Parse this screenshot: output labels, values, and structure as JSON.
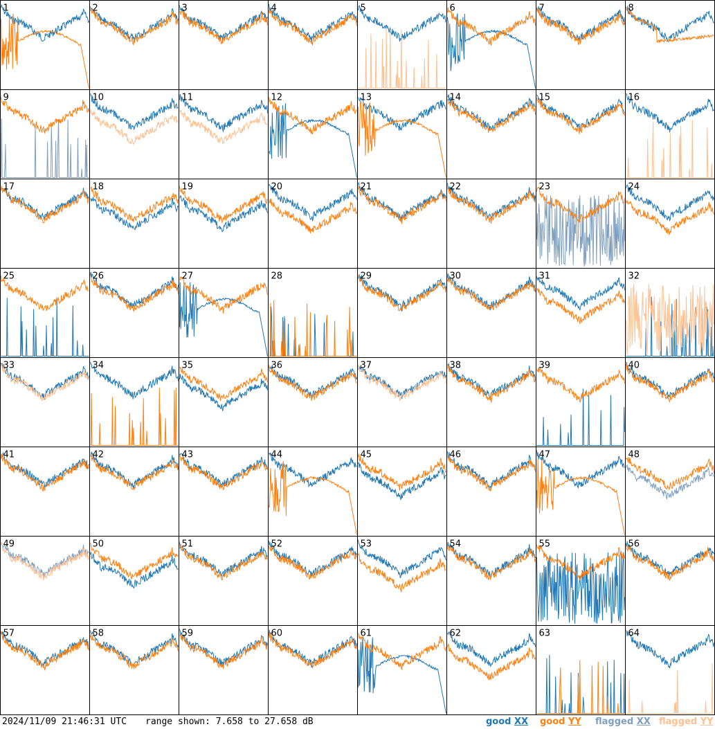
{
  "footer": {
    "timestamp": "2024/11/09 21:46:31 UTC",
    "range_text": "range shown: 7.658 to 27.658 dB",
    "legend": {
      "good_xx_word": "good",
      "good_xx_code": "XX",
      "good_yy_word": "good",
      "good_yy_code": "YY",
      "flagged_xx_word": "flagged",
      "flagged_xx_code": "XX",
      "flagged_yy_word": "flagged",
      "flagged_yy_code": "YY"
    }
  },
  "colors": {
    "good_xx": "#1f77b4",
    "good_yy": "#ff7f0e",
    "flagged_xx": "#7f9fbf",
    "flagged_yy": "#ffbf8f",
    "border": "#000000"
  },
  "chart_data": {
    "type": "line",
    "grid_rows": 8,
    "grid_cols": 8,
    "y_range_db": [
      7.658,
      27.658
    ],
    "series_types": [
      "good XX",
      "good YY",
      "flagged XX",
      "flagged YY"
    ],
    "panels": [
      {
        "label": "1",
        "xx": "good",
        "yy": "good",
        "xx_shape": "normal",
        "yy_shape": "drop"
      },
      {
        "label": "2",
        "xx": "good",
        "yy": "good",
        "xx_shape": "normal",
        "yy_shape": "normal"
      },
      {
        "label": "3",
        "xx": "good",
        "yy": "good",
        "xx_shape": "normal",
        "yy_shape": "normal"
      },
      {
        "label": "4",
        "xx": "good",
        "yy": "good",
        "xx_shape": "normal",
        "yy_shape": "normal"
      },
      {
        "label": "5",
        "xx": "good",
        "yy": "flagged",
        "xx_shape": "normal",
        "yy_shape": "spikes"
      },
      {
        "label": "6",
        "xx": "good",
        "yy": "good",
        "xx_shape": "drop",
        "yy_shape": "normal"
      },
      {
        "label": "7",
        "xx": "good",
        "yy": "good",
        "xx_shape": "normal",
        "yy_shape": "normal"
      },
      {
        "label": "8",
        "xx": "good",
        "yy": "good",
        "xx_shape": "normal",
        "yy_shape": "sag"
      },
      {
        "label": "9",
        "xx": "flagged",
        "yy": "good",
        "xx_shape": "spikes",
        "yy_shape": "normal"
      },
      {
        "label": "10",
        "xx": "good",
        "yy": "flagged",
        "xx_shape": "normal",
        "yy_shape": "low"
      },
      {
        "label": "11",
        "xx": "good",
        "yy": "flagged",
        "xx_shape": "normal",
        "yy_shape": "low"
      },
      {
        "label": "12",
        "xx": "good",
        "yy": "good",
        "xx_shape": "drop",
        "yy_shape": "normal"
      },
      {
        "label": "13",
        "xx": "good",
        "yy": "good",
        "xx_shape": "normal",
        "yy_shape": "drop"
      },
      {
        "label": "14",
        "xx": "good",
        "yy": "good",
        "xx_shape": "normal",
        "yy_shape": "normal"
      },
      {
        "label": "15",
        "xx": "good",
        "yy": "good",
        "xx_shape": "normal",
        "yy_shape": "normal"
      },
      {
        "label": "16",
        "xx": "good",
        "yy": "flagged",
        "xx_shape": "normal",
        "yy_shape": "spikes"
      },
      {
        "label": "17",
        "xx": "good",
        "yy": "good",
        "xx_shape": "normal",
        "yy_shape": "normal"
      },
      {
        "label": "18",
        "xx": "good",
        "yy": "good",
        "xx_shape": "low",
        "yy_shape": "normal"
      },
      {
        "label": "19",
        "xx": "good",
        "yy": "good",
        "xx_shape": "low",
        "yy_shape": "normal"
      },
      {
        "label": "20",
        "xx": "good",
        "yy": "good",
        "xx_shape": "normal",
        "yy_shape": "low"
      },
      {
        "label": "21",
        "xx": "good",
        "yy": "good",
        "xx_shape": "normal",
        "yy_shape": "normal"
      },
      {
        "label": "22",
        "xx": "good",
        "yy": "good",
        "xx_shape": "normal",
        "yy_shape": "normal"
      },
      {
        "label": "23",
        "xx": "flagged",
        "yy": "good",
        "xx_shape": "noise",
        "yy_shape": "normal"
      },
      {
        "label": "24",
        "xx": "good",
        "yy": "good",
        "xx_shape": "normal",
        "yy_shape": "low"
      },
      {
        "label": "25",
        "xx": "good",
        "yy": "good",
        "xx_shape": "spikes",
        "yy_shape": "normal"
      },
      {
        "label": "26",
        "xx": "good",
        "yy": "good",
        "xx_shape": "normal",
        "yy_shape": "normal"
      },
      {
        "label": "27",
        "xx": "good",
        "yy": "good",
        "xx_shape": "drop",
        "yy_shape": "normal"
      },
      {
        "label": "28",
        "xx": "good",
        "yy": "good",
        "xx_shape": "spikes",
        "yy_shape": "spikes"
      },
      {
        "label": "29",
        "xx": "good",
        "yy": "good",
        "xx_shape": "normal",
        "yy_shape": "normal"
      },
      {
        "label": "30",
        "xx": "good",
        "yy": "good",
        "xx_shape": "normal",
        "yy_shape": "normal"
      },
      {
        "label": "31",
        "xx": "good",
        "yy": "good",
        "xx_shape": "normal",
        "yy_shape": "low"
      },
      {
        "label": "32",
        "xx": "good",
        "yy": "flagged",
        "xx_shape": "spikes",
        "yy_shape": "noise"
      },
      {
        "label": "33",
        "xx": "good",
        "yy": "flagged",
        "xx_shape": "normal",
        "yy_shape": "normal"
      },
      {
        "label": "34",
        "xx": "good",
        "yy": "good",
        "xx_shape": "normal",
        "yy_shape": "spikes"
      },
      {
        "label": "35",
        "xx": "good",
        "yy": "good",
        "xx_shape": "low",
        "yy_shape": "normal"
      },
      {
        "label": "36",
        "xx": "good",
        "yy": "good",
        "xx_shape": "normal",
        "yy_shape": "normal"
      },
      {
        "label": "37",
        "xx": "good",
        "yy": "flagged",
        "xx_shape": "normal",
        "yy_shape": "normal"
      },
      {
        "label": "38",
        "xx": "good",
        "yy": "good",
        "xx_shape": "normal",
        "yy_shape": "normal"
      },
      {
        "label": "39",
        "xx": "good",
        "yy": "good",
        "xx_shape": "spikes",
        "yy_shape": "normal"
      },
      {
        "label": "40",
        "xx": "good",
        "yy": "good",
        "xx_shape": "normal",
        "yy_shape": "normal"
      },
      {
        "label": "41",
        "xx": "good",
        "yy": "good",
        "xx_shape": "normal",
        "yy_shape": "normal"
      },
      {
        "label": "42",
        "xx": "good",
        "yy": "good",
        "xx_shape": "normal",
        "yy_shape": "normal"
      },
      {
        "label": "43",
        "xx": "good",
        "yy": "good",
        "xx_shape": "normal",
        "yy_shape": "normal"
      },
      {
        "label": "44",
        "xx": "good",
        "yy": "good",
        "xx_shape": "normal",
        "yy_shape": "drop"
      },
      {
        "label": "45",
        "xx": "good",
        "yy": "good",
        "xx_shape": "low",
        "yy_shape": "normal"
      },
      {
        "label": "46",
        "xx": "good",
        "yy": "good",
        "xx_shape": "normal",
        "yy_shape": "normal"
      },
      {
        "label": "47",
        "xx": "good",
        "yy": "good",
        "xx_shape": "normal",
        "yy_shape": "drop"
      },
      {
        "label": "48",
        "xx": "flagged",
        "yy": "good",
        "xx_shape": "low",
        "yy_shape": "normal"
      },
      {
        "label": "49",
        "xx": "flagged",
        "yy": "flagged",
        "xx_shape": "normal",
        "yy_shape": "normal"
      },
      {
        "label": "50",
        "xx": "good",
        "yy": "good",
        "xx_shape": "low",
        "yy_shape": "normal"
      },
      {
        "label": "51",
        "xx": "good",
        "yy": "good",
        "xx_shape": "normal",
        "yy_shape": "normal"
      },
      {
        "label": "52",
        "xx": "good",
        "yy": "good",
        "xx_shape": "normal",
        "yy_shape": "normal"
      },
      {
        "label": "53",
        "xx": "good",
        "yy": "good",
        "xx_shape": "normal",
        "yy_shape": "low"
      },
      {
        "label": "54",
        "xx": "good",
        "yy": "good",
        "xx_shape": "normal",
        "yy_shape": "normal"
      },
      {
        "label": "55",
        "xx": "good",
        "yy": "good",
        "xx_shape": "noise",
        "yy_shape": "normal"
      },
      {
        "label": "56",
        "xx": "good",
        "yy": "good",
        "xx_shape": "normal",
        "yy_shape": "normal"
      },
      {
        "label": "57",
        "xx": "good",
        "yy": "good",
        "xx_shape": "normal",
        "yy_shape": "normal"
      },
      {
        "label": "58",
        "xx": "good",
        "yy": "good",
        "xx_shape": "normal",
        "yy_shape": "normal"
      },
      {
        "label": "59",
        "xx": "good",
        "yy": "good",
        "xx_shape": "normal",
        "yy_shape": "normal"
      },
      {
        "label": "60",
        "xx": "good",
        "yy": "good",
        "xx_shape": "normal",
        "yy_shape": "normal"
      },
      {
        "label": "61",
        "xx": "good",
        "yy": "good",
        "xx_shape": "drop",
        "yy_shape": "normal"
      },
      {
        "label": "62",
        "xx": "good",
        "yy": "good",
        "xx_shape": "normal",
        "yy_shape": "low"
      },
      {
        "label": "63",
        "xx": "good",
        "yy": "good",
        "xx_shape": "spikes",
        "yy_shape": "spikes"
      },
      {
        "label": "64",
        "xx": "good",
        "yy": "flagged",
        "xx_shape": "normal",
        "yy_shape": "spikes"
      }
    ]
  }
}
